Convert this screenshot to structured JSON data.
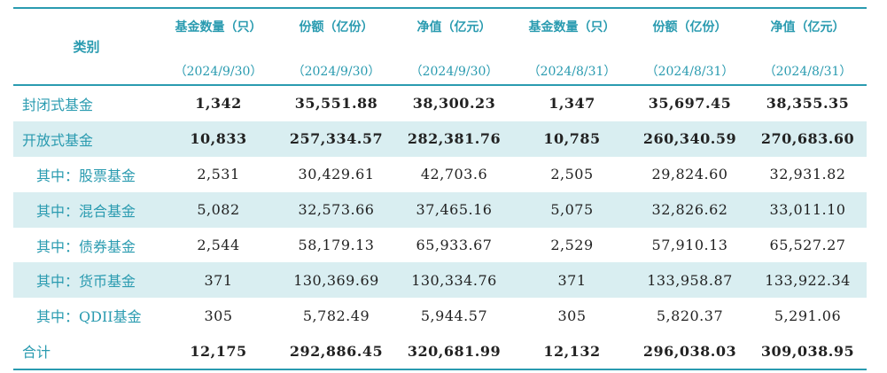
{
  "table": {
    "category_header": "类别",
    "columns": [
      {
        "title": "基金数量（只）",
        "date": "（2024/9/30）"
      },
      {
        "title": "份额（亿份）",
        "date": "（2024/9/30）"
      },
      {
        "title": "净值（亿元）",
        "date": "（2024/9/30）"
      },
      {
        "title": "基金数量（只）",
        "date": "（2024/8/31）"
      },
      {
        "title": "份额（亿份）",
        "date": "（2024/8/31）"
      },
      {
        "title": "净值（亿元）",
        "date": "（2024/8/31）"
      }
    ],
    "rows": [
      {
        "category": "封闭式基金",
        "values": [
          "1,342",
          "35,551.88",
          "38,300.23",
          "1,347",
          "35,697.45",
          "38,355.35"
        ]
      },
      {
        "category": "开放式基金",
        "values": [
          "10,833",
          "257,334.57",
          "282,381.76",
          "10,785",
          "260,340.59",
          "270,683.60"
        ]
      },
      {
        "category": "其中：股票基金",
        "values": [
          "2,531",
          "30,429.61",
          "42,703.6",
          "2,505",
          "29,824.60",
          "32,931.82"
        ]
      },
      {
        "category": "其中：混合基金",
        "values": [
          "5,082",
          "32,573.66",
          "37,465.16",
          "5,075",
          "32,826.62",
          "33,011.10"
        ]
      },
      {
        "category": "其中：债券基金",
        "values": [
          "2,544",
          "58,179.13",
          "65,933.67",
          "2,529",
          "57,910.13",
          "65,527.27"
        ]
      },
      {
        "category": "其中：货币基金",
        "values": [
          "371",
          "130,369.69",
          "130,334.76",
          "371",
          "133,958.87",
          "133,922.34"
        ]
      },
      {
        "category": "其中：QDII基金",
        "values": [
          "305",
          "5,782.49",
          "5,944.57",
          "305",
          "5,820.37",
          "5,291.06"
        ]
      },
      {
        "category": "合计",
        "values": [
          "12,175",
          "292,886.45",
          "320,681.99",
          "12,132",
          "296,038.03",
          "309,038.95"
        ]
      }
    ]
  }
}
